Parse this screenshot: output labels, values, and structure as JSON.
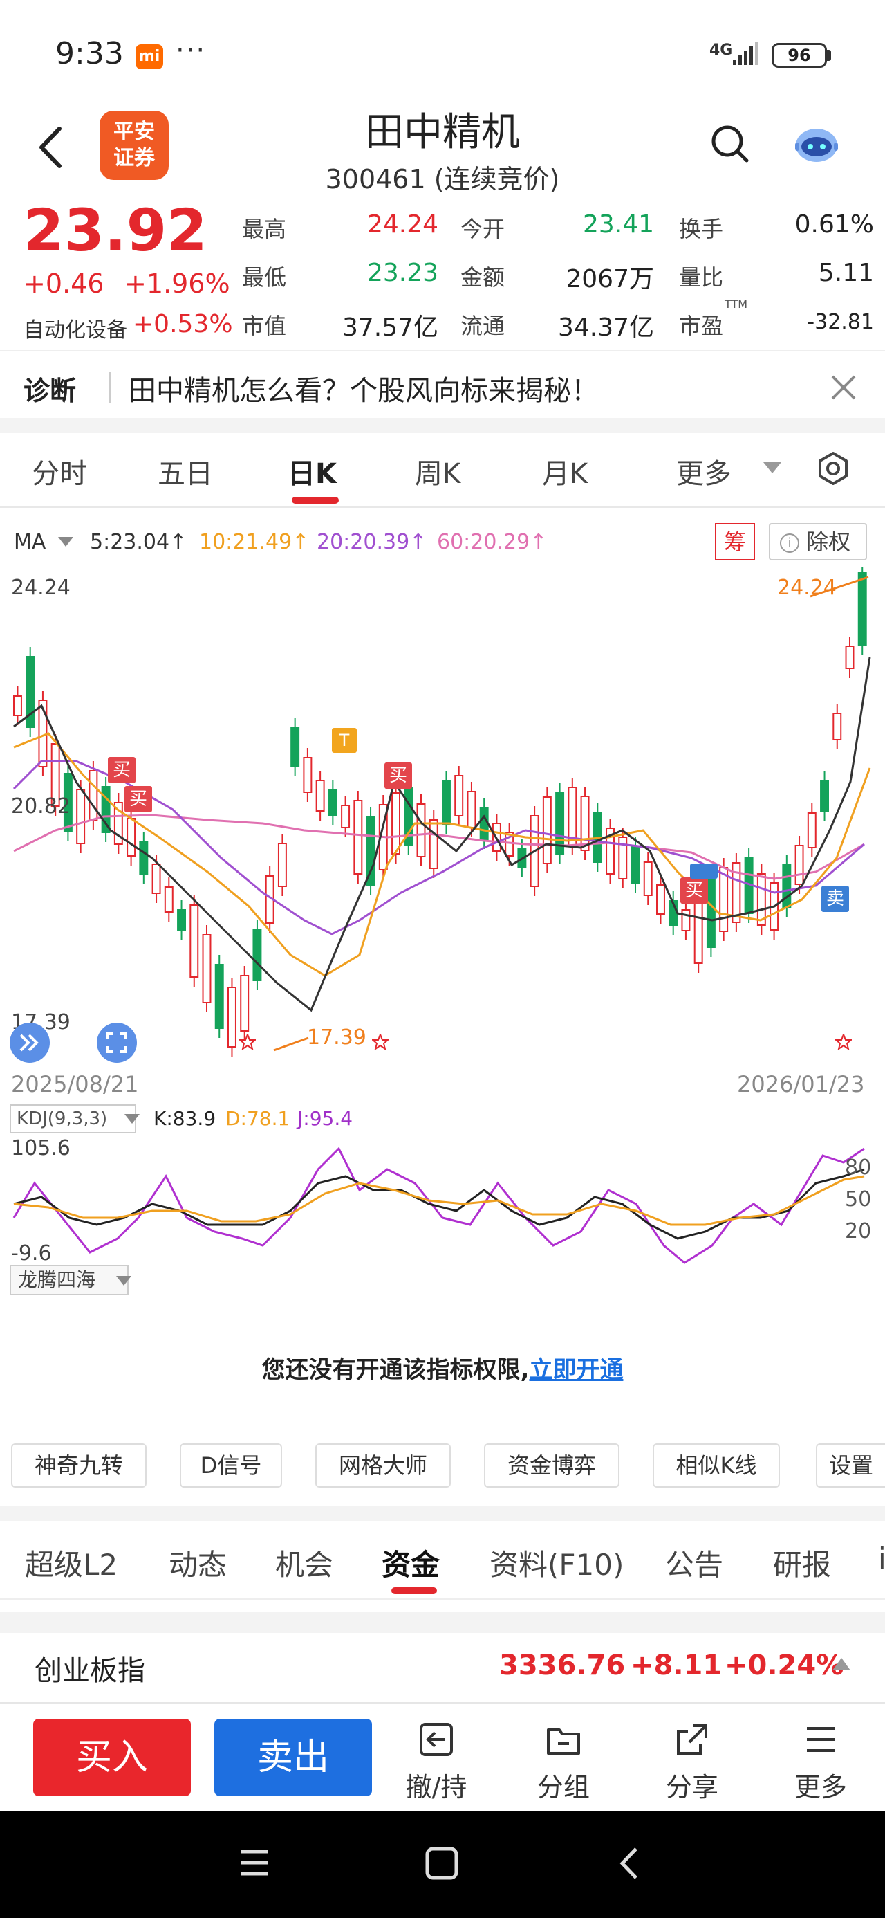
{
  "status_bar": {
    "time": "9:33",
    "mi_badge": "mi",
    "dots": "···",
    "network": "4G",
    "battery": "96"
  },
  "header": {
    "logo_line1": "平安",
    "logo_line2": "证券",
    "stock_name": "田中精机",
    "stock_code": "300461 (连续竞价)"
  },
  "quote": {
    "price": "23.92",
    "change": "+0.46",
    "change_pct": "+1.96%",
    "sector_label": "自动化设备",
    "sector_pct": "+0.53%",
    "fields": [
      {
        "label": "最高",
        "value": "24.24"
      },
      {
        "label": "今开",
        "value": "23.41"
      },
      {
        "label": "换手",
        "value": "0.61%"
      },
      {
        "label": "最低",
        "value": "23.23"
      },
      {
        "label": "金额",
        "value": "2067万"
      },
      {
        "label": "量比",
        "value": "5.11"
      },
      {
        "label": "市值",
        "value": "37.57亿"
      },
      {
        "label": "流通",
        "value": "34.37亿"
      },
      {
        "label": "市盈",
        "value": "-32.81"
      }
    ],
    "pe_sup": "TTM"
  },
  "diagnosis": {
    "title": "诊断",
    "text": "田中精机怎么看？个股风向标来揭秘！"
  },
  "period_tabs": [
    "分时",
    "五日",
    "日K",
    "周K",
    "月K",
    "更多"
  ],
  "active_period_tab": 2,
  "ma_legend": {
    "label": "MA",
    "ma5": "5:23.04↑",
    "ma10": "10:21.49↑",
    "ma20": "20:20.39↑",
    "ma60": "60:20.29↑",
    "chou_label": "筹",
    "chuquan_label": "除权",
    "colors": {
      "ma5": "#333333",
      "ma10": "#f0a020",
      "ma20": "#a050d0",
      "ma60": "#e070b0"
    }
  },
  "kline": {
    "price_high_label": "24.24",
    "price_mid_label": "20.82",
    "price_low_label": "17.39",
    "marker_high": "24.24",
    "marker_low": "17.39",
    "date_start": "2025/08/21",
    "date_end": "2026/01/23",
    "signal_buy": "买",
    "signal_sell": "卖",
    "signal_t": "T"
  },
  "kdj": {
    "tag": "KDJ(9,3,3)",
    "k": "K:83.9",
    "d": "D:78.1",
    "j": "J:95.4",
    "y_max": "105.6",
    "y_min": "-9.6",
    "levels": [
      "80",
      "50",
      "20"
    ]
  },
  "indicator_tag": "龙腾四海",
  "permission": {
    "msg": "您还没有开通该指标权限,",
    "link": "立即开通"
  },
  "tool_buttons": [
    "神奇九转",
    "D信号",
    "网格大师",
    "资金博弈",
    "相似K线",
    "设置"
  ],
  "info_tabs": [
    "超级L2",
    "动态",
    "机会",
    "资金",
    "资料(F10)",
    "公告",
    "研报",
    "i"
  ],
  "active_info_tab": 3,
  "index_ticker": {
    "name": "创业板指",
    "price": "3336.76",
    "change": "+8.11",
    "pct": "+0.24%"
  },
  "actions": {
    "buy": "买入",
    "sell": "卖出",
    "withdraw": "撤/持",
    "group": "分组",
    "share": "分享",
    "more": "更多"
  }
}
